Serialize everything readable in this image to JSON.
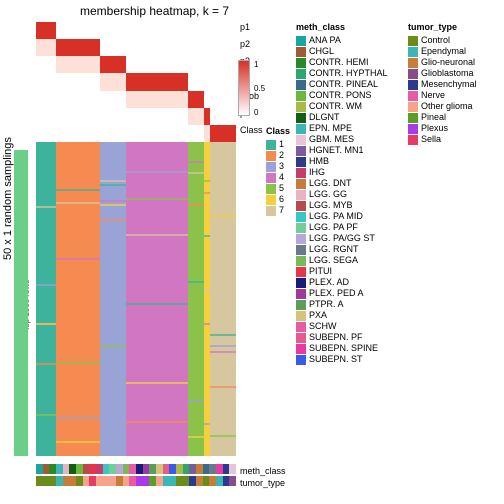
{
  "title": "membership heatmap, k = 7",
  "y_label": "50 x 1 random samplings",
  "y_label2": "top 1000 rows",
  "row_labels": [
    "p1",
    "p2",
    "p3",
    "p4",
    "Prob",
    "p6",
    "Class"
  ],
  "prob_legend": {
    "title": "Prob",
    "ticks": [
      "1",
      "0.5",
      "0"
    ],
    "grad_top": "#d73027",
    "grad_bot": "#ffffff"
  },
  "class_legend": {
    "title": "Class",
    "items": [
      {
        "l": "1",
        "c": "#3cb39a"
      },
      {
        "l": "2",
        "c": "#f58b51"
      },
      {
        "l": "3",
        "c": "#9aa3d6"
      },
      {
        "l": "4",
        "c": "#d176c1"
      },
      {
        "l": "5",
        "c": "#8bc34a"
      },
      {
        "l": "6",
        "c": "#f4d03f"
      },
      {
        "l": "7",
        "c": "#d6c79e"
      }
    ]
  },
  "meth_legend": {
    "title": "meth_class",
    "items": [
      {
        "l": "ANA PA",
        "c": "#1aa6a0"
      },
      {
        "l": "CHGL",
        "c": "#9e5b34"
      },
      {
        "l": "CONTR. HEMI",
        "c": "#2a8a2a"
      },
      {
        "l": "CONTR. HYPTHAL",
        "c": "#2da86b"
      },
      {
        "l": "CONTR. PINEAL",
        "c": "#3a6b8c"
      },
      {
        "l": "CONTR. PONS",
        "c": "#6bb83a"
      },
      {
        "l": "CONTR. WM",
        "c": "#a8bb4a"
      },
      {
        "l": "DLGNT",
        "c": "#135e13"
      },
      {
        "l": "EPN. MPE",
        "c": "#3bb6b6"
      },
      {
        "l": "GBM. MES",
        "c": "#e8c4d4"
      },
      {
        "l": "HGNET. MN1",
        "c": "#7b5b9e"
      },
      {
        "l": "HMB",
        "c": "#2a3a8c"
      },
      {
        "l": "IHG",
        "c": "#c43d6d"
      },
      {
        "l": "LGG. DNT",
        "c": "#c77d3a"
      },
      {
        "l": "LGG. GG",
        "c": "#e8b4c4"
      },
      {
        "l": "LGG. MYB",
        "c": "#b84a4a"
      },
      {
        "l": "LGG. PA MID",
        "c": "#3ac6c6"
      },
      {
        "l": "LGG. PA PF",
        "c": "#6fcf97"
      },
      {
        "l": "LGG. PA/GG ST",
        "c": "#b8a8d8"
      },
      {
        "l": "LGG. RGNT",
        "c": "#6a7a8a"
      },
      {
        "l": "LGG. SEGA",
        "c": "#7bb85a"
      },
      {
        "l": "PITUI",
        "c": "#e8344a"
      },
      {
        "l": "PLEX. AD",
        "c": "#1a1a7a"
      },
      {
        "l": "PLEX. PED A",
        "c": "#9e3a9e"
      },
      {
        "l": "PTPR. A",
        "c": "#5a9e5a"
      },
      {
        "l": "PXA",
        "c": "#d4c47a"
      },
      {
        "l": "SCHW",
        "c": "#e85aa4"
      },
      {
        "l": "SUBEPN. PF",
        "c": "#e85a8a"
      },
      {
        "l": "SUBEPN. SPINE",
        "c": "#e83aa4"
      },
      {
        "l": "SUBEPN. ST",
        "c": "#3a5ae8"
      }
    ]
  },
  "tumor_legend": {
    "title": "tumor_type",
    "items": [
      {
        "l": "Control",
        "c": "#6b8c1a"
      },
      {
        "l": "Ependymal",
        "c": "#3ab6b6"
      },
      {
        "l": "Glio-neuronal",
        "c": "#c77d3a"
      },
      {
        "l": "Glioblastoma",
        "c": "#8b4a8b"
      },
      {
        "l": "Mesenchymal",
        "c": "#2a3a8c"
      },
      {
        "l": "Nerve",
        "c": "#e85aa4"
      },
      {
        "l": "Other glioma",
        "c": "#f5a48b"
      },
      {
        "l": "Pineal",
        "c": "#5a9e2a"
      },
      {
        "l": "Plexus",
        "c": "#a83ae8"
      },
      {
        "l": "Sella",
        "c": "#e83a6a"
      }
    ]
  },
  "class_band": [
    {
      "w": 10,
      "c": "#3cb39a"
    },
    {
      "w": 22,
      "c": "#f58b51"
    },
    {
      "w": 13,
      "c": "#9aa3d6"
    },
    {
      "w": 31,
      "c": "#d176c1"
    },
    {
      "w": 8,
      "c": "#8bc34a"
    },
    {
      "w": 3,
      "c": "#f4d03f"
    },
    {
      "w": 13,
      "c": "#d6c79e"
    }
  ],
  "diag": {
    "n": 7,
    "on": "#d73027",
    "off": "#ffffff"
  },
  "left_strip_color": "#6bcf8a",
  "anno_labels": [
    "meth_class",
    "tumor_type"
  ],
  "meth_strip": [
    "#1aa6a0",
    "#9e5b34",
    "#2a8a2a",
    "#3bb6b6",
    "#e8b4c4",
    "#135e13",
    "#6bb83a",
    "#b84a4a",
    "#e8344a",
    "#c43d6d",
    "#3ac6c6",
    "#6fcf97",
    "#b8a8d8",
    "#7bb85a",
    "#e85aa4",
    "#1a1a7a",
    "#9e3a9e",
    "#5a9e5a",
    "#d4c47a",
    "#e85a8a",
    "#3a5ae8",
    "#a8bb4a",
    "#2da86b",
    "#7b5b9e",
    "#c77d3a",
    "#3a6b8c",
    "#6a7a8a",
    "#e83aa4",
    "#2a3a8c",
    "#e8c4d4"
  ],
  "tumor_strip": [
    "#6b8c1a",
    "#6b8c1a",
    "#6b8c1a",
    "#3ab6b6",
    "#c77d3a",
    "#c77d3a",
    "#6b8c1a",
    "#f5a48b",
    "#e83a6a",
    "#f5a48b",
    "#f5a48b",
    "#f5a48b",
    "#c77d3a",
    "#f5a48b",
    "#e85aa4",
    "#a83ae8",
    "#a83ae8",
    "#5a9e2a",
    "#f5a48b",
    "#3ab6b6",
    "#3ab6b6",
    "#6b8c1a",
    "#6b8c1a",
    "#2a3a8c",
    "#c77d3a",
    "#6b8c1a",
    "#c77d3a",
    "#3ab6b6",
    "#2a3a8c",
    "#8b4a8b"
  ]
}
